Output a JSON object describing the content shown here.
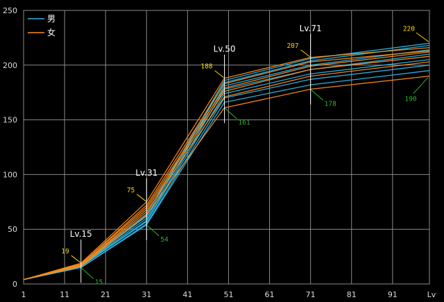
{
  "chart_data": {
    "type": "line",
    "xlabel": "Lv",
    "xlim": [
      1,
      100
    ],
    "ylim": [
      0,
      250
    ],
    "x_ticks": [
      1,
      11,
      21,
      31,
      41,
      51,
      61,
      71,
      81,
      91
    ],
    "y_ticks": [
      0,
      50,
      100,
      150,
      200,
      250
    ],
    "grid": true,
    "legend": {
      "placement": "top-left",
      "entries": [
        {
          "label": "男",
          "color": "#2ab6e6"
        },
        {
          "label": "女",
          "color": "#ff8c1a"
        }
      ]
    },
    "markers": [
      {
        "label": "Lv.15",
        "x": 15,
        "high": 19,
        "low": 15
      },
      {
        "label": "Lv.31",
        "x": 31,
        "high": 75,
        "low": 54
      },
      {
        "label": "Lv.50",
        "x": 50,
        "high": 188,
        "low": 161
      },
      {
        "label": "Lv.71",
        "x": 71,
        "high": 207,
        "low": 178
      },
      {
        "label": "",
        "x": 100,
        "high": 220,
        "low": 190
      }
    ],
    "series": [
      {
        "group": "男",
        "color": "#2ab6e6",
        "x": [
          1,
          15,
          31,
          50,
          71,
          100
        ],
        "values": [
          4,
          17,
          64,
          186,
          206,
          220
        ]
      },
      {
        "group": "男",
        "color": "#2ab6e6",
        "x": [
          1,
          15,
          31,
          50,
          71,
          100
        ],
        "values": [
          4,
          17,
          62,
          184,
          204,
          218
        ]
      },
      {
        "group": "男",
        "color": "#2ab6e6",
        "x": [
          1,
          15,
          31,
          50,
          71,
          100
        ],
        "values": [
          4,
          16,
          60,
          181,
          200,
          214
        ]
      },
      {
        "group": "男",
        "color": "#2ab6e6",
        "x": [
          1,
          15,
          31,
          50,
          71,
          100
        ],
        "values": [
          4,
          16,
          58,
          178,
          196,
          210
        ]
      },
      {
        "group": "男",
        "color": "#2ab6e6",
        "x": [
          1,
          15,
          31,
          50,
          71,
          100
        ],
        "values": [
          4,
          16,
          57,
          174,
          192,
          205
        ]
      },
      {
        "group": "男",
        "color": "#2ab6e6",
        "x": [
          1,
          15,
          31,
          50,
          71,
          100
        ],
        "values": [
          4,
          15,
          55,
          170,
          187,
          200
        ]
      },
      {
        "group": "男",
        "color": "#2ab6e6",
        "x": [
          1,
          15,
          31,
          50,
          71,
          100
        ],
        "values": [
          4,
          15,
          54,
          166,
          182,
          195
        ]
      },
      {
        "group": "女",
        "color": "#ff8c1a",
        "x": [
          1,
          15,
          31,
          50,
          71,
          100
        ],
        "values": [
          4,
          19,
          75,
          188,
          207,
          216
        ]
      },
      {
        "group": "女",
        "color": "#ff8c1a",
        "x": [
          1,
          15,
          31,
          50,
          71,
          100
        ],
        "values": [
          4,
          18,
          72,
          183,
          203,
          213
        ]
      },
      {
        "group": "女",
        "color": "#ff8c1a",
        "x": [
          1,
          15,
          31,
          50,
          71,
          100
        ],
        "values": [
          4,
          18,
          70,
          179,
          199,
          212
        ]
      },
      {
        "group": "女",
        "color": "#ff8c1a",
        "x": [
          1,
          15,
          31,
          50,
          71,
          100
        ],
        "values": [
          4,
          17,
          68,
          176,
          196,
          208
        ]
      },
      {
        "group": "女",
        "color": "#ff8c1a",
        "x": [
          1,
          15,
          31,
          50,
          71,
          100
        ],
        "values": [
          4,
          17,
          66,
          171,
          190,
          203
        ]
      },
      {
        "group": "女",
        "color": "#ff8c1a",
        "x": [
          1,
          15,
          31,
          50,
          71,
          100
        ],
        "values": [
          4,
          16,
          63,
          161,
          178,
          190
        ]
      }
    ]
  }
}
